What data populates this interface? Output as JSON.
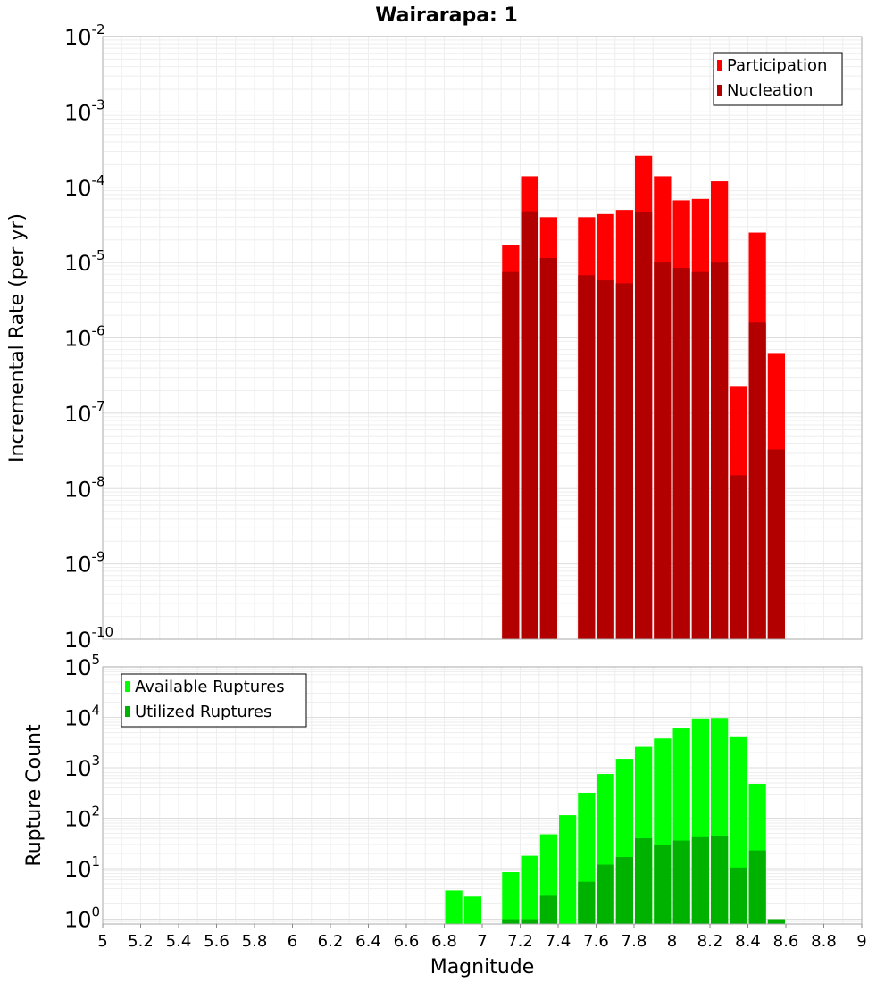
{
  "chart_data": {
    "title": "Wairarapa: 1",
    "xlabel": "Magnitude",
    "xlim": [
      5,
      9
    ],
    "x_ticks": [
      "5",
      "5.2",
      "5.4",
      "5.6",
      "5.8",
      "6",
      "6.2",
      "6.4",
      "6.6",
      "6.8",
      "7",
      "7.2",
      "7.4",
      "7.6",
      "7.8",
      "8",
      "8.2",
      "8.4",
      "8.6",
      "8.8",
      "9"
    ],
    "bin_width": 0.1,
    "panels": [
      {
        "type": "bar",
        "ylabel": "Incremental Rate (per yr)",
        "yscale": "log",
        "ylim": [
          1e-10,
          0.01
        ],
        "y_tick_exponents": [
          "-10",
          "-9",
          "-8",
          "-7",
          "-6",
          "-5",
          "-4",
          "-3",
          "-2"
        ],
        "legend_position": "top-right",
        "x": [
          7.15,
          7.25,
          7.35,
          7.55,
          7.65,
          7.75,
          7.85,
          7.95,
          8.05,
          8.15,
          8.25,
          8.35,
          8.45,
          8.55
        ],
        "series": [
          {
            "name": "Participation",
            "color": "#ff0000",
            "values": [
              1.7e-05,
              0.00014,
              4e-05,
              4e-05,
              4.4e-05,
              5e-05,
              0.00026,
              0.00014,
              6.7e-05,
              7e-05,
              0.00012,
              2.3e-07,
              2.5e-05,
              6.3e-07
            ]
          },
          {
            "name": "Nucleation",
            "color": "#b20000",
            "values": [
              7.5e-06,
              4.8e-05,
              1.15e-05,
              6.8e-06,
              5.8e-06,
              5.3e-06,
              4.7e-05,
              1e-05,
              8.5e-06,
              7.5e-06,
              1e-05,
              1.5e-08,
              1.6e-06,
              3.3e-08
            ]
          }
        ]
      },
      {
        "type": "bar",
        "ylabel": "Rupture Count",
        "yscale": "log",
        "ylim": [
          0.8,
          100000.0
        ],
        "y_tick_exponents": [
          "0",
          "1",
          "2",
          "3",
          "4",
          "5"
        ],
        "legend_position": "top-left",
        "series": [
          {
            "name": "Available Ruptures",
            "color": "#00ff00",
            "x": [
              6.85,
              6.95,
              7.15,
              7.25,
              7.35,
              7.45,
              7.55,
              7.65,
              7.75,
              7.85,
              7.95,
              8.05,
              8.15,
              8.25,
              8.35,
              8.45
            ],
            "values": [
              3.7,
              2.8,
              8.5,
              18,
              48,
              115,
              320,
              750,
              1500,
              2600,
              3800,
              6000,
              9500,
              9700,
              4200,
              480
            ]
          },
          {
            "name": "Utilized Ruptures",
            "color": "#00b200",
            "x": [
              7.15,
              7.25,
              7.35,
              7.55,
              7.65,
              7.75,
              7.85,
              7.95,
              8.05,
              8.15,
              8.25,
              8.35,
              8.45,
              8.55
            ],
            "values": [
              1,
              1,
              2.9,
              5.5,
              12,
              17,
              40,
              29,
              36,
              42,
              44,
              10.5,
              23,
              1
            ]
          }
        ]
      }
    ]
  }
}
